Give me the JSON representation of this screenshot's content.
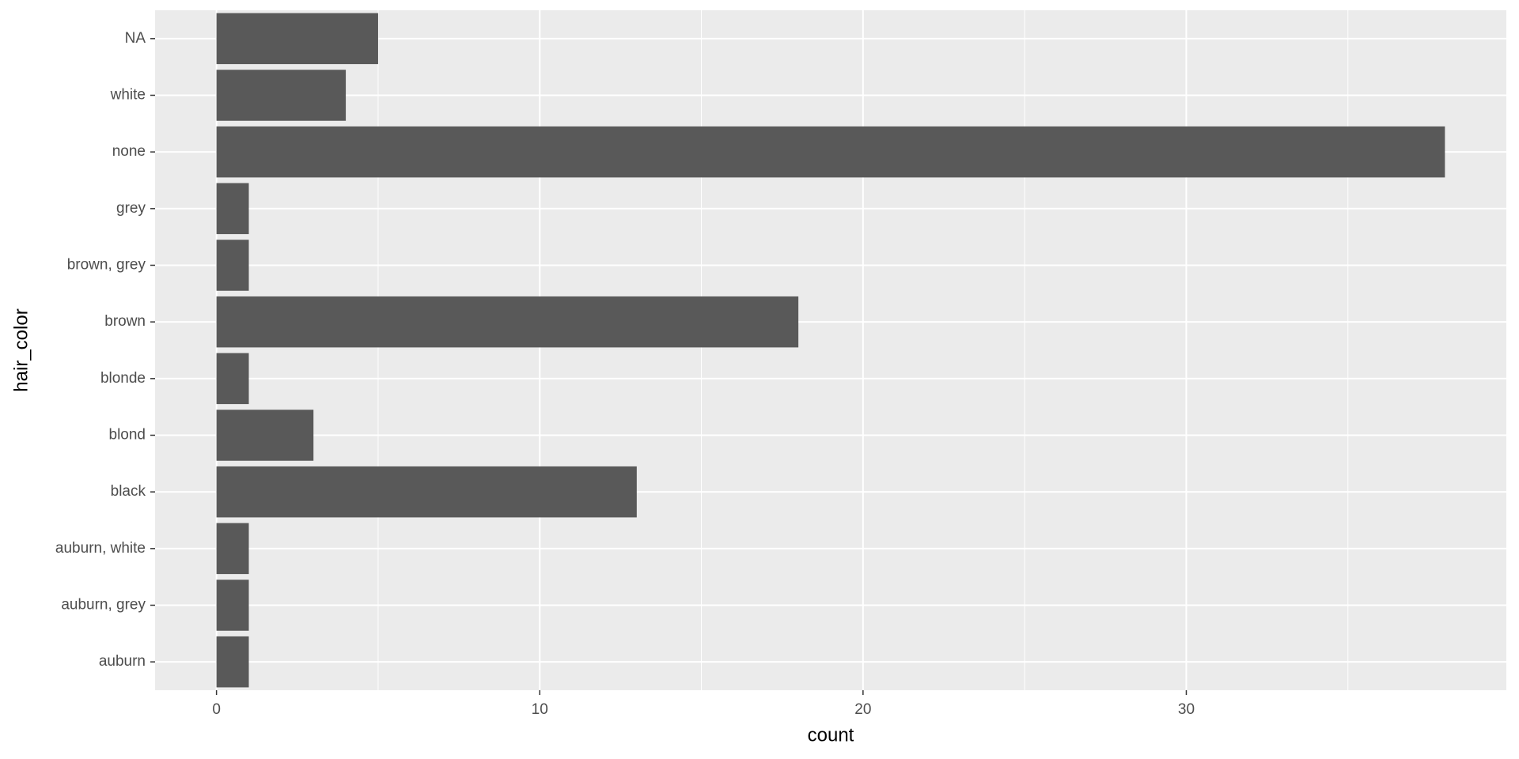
{
  "chart_data": {
    "type": "barh",
    "categories": [
      "auburn",
      "auburn, grey",
      "auburn, white",
      "black",
      "blond",
      "blonde",
      "brown",
      "brown, grey",
      "grey",
      "none",
      "white",
      "NA"
    ],
    "values": [
      1,
      1,
      1,
      13,
      3,
      1,
      18,
      1,
      1,
      38,
      4,
      5
    ],
    "color": "#595959",
    "xlabel": "count",
    "ylabel": "hair_color",
    "xlim": [
      -1.9,
      39.9
    ],
    "xticks": [
      0,
      10,
      20,
      30
    ],
    "x_minor_grid": [
      5,
      15,
      25,
      35
    ],
    "grid": true
  }
}
